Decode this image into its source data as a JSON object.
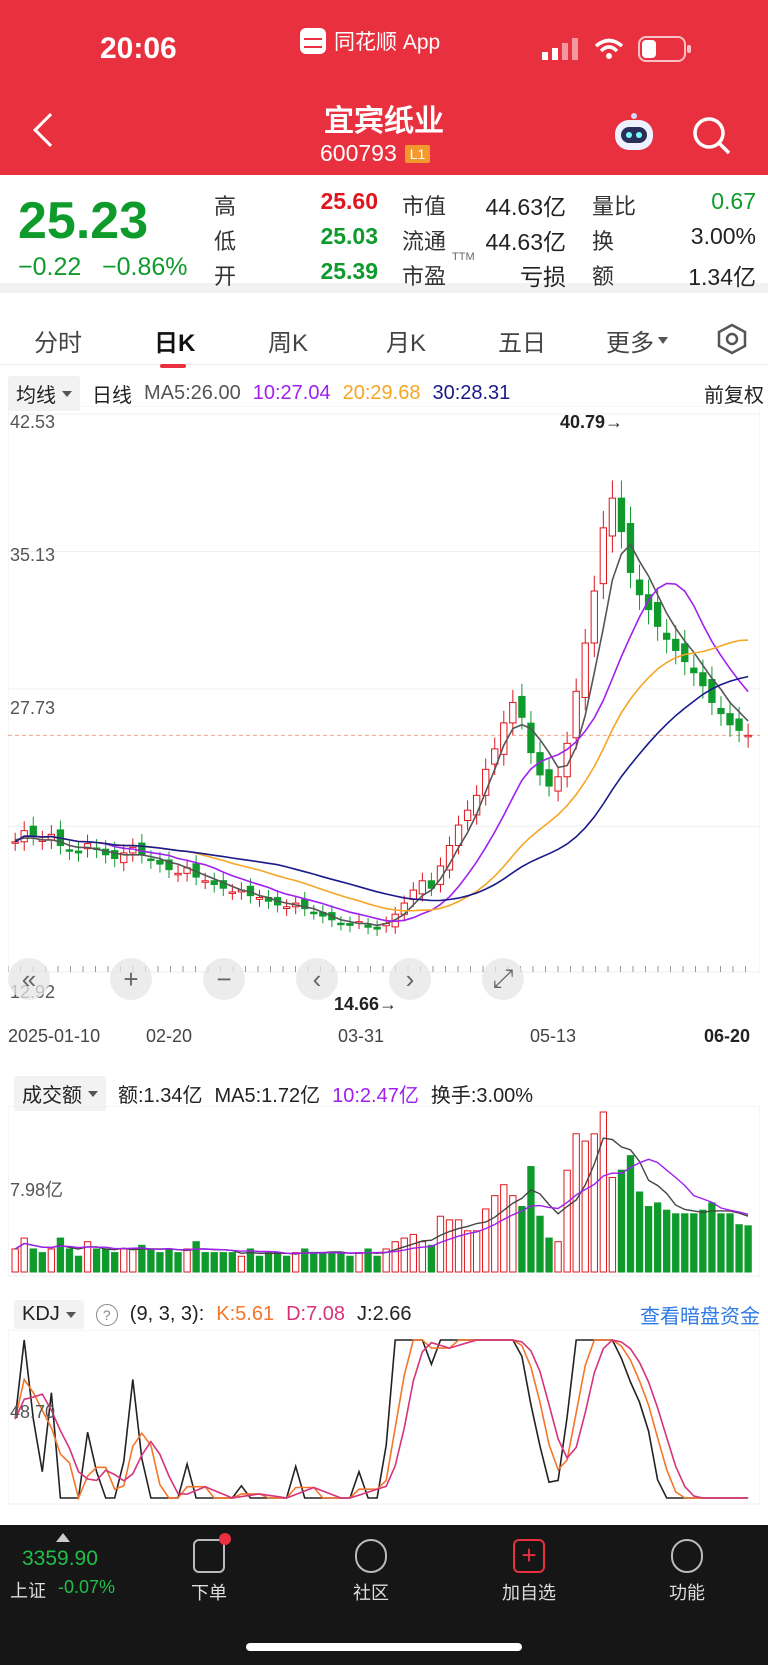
{
  "status_bar": {
    "time": "20:06",
    "app": "同花顺 App"
  },
  "header": {
    "name": "宜宾纸业",
    "code": "600793",
    "level": "L1"
  },
  "quote": {
    "price": "25.23",
    "change": "−0.22",
    "change_pct": "−0.86%",
    "high_label": "高",
    "high": "25.60",
    "low_label": "低",
    "low": "25.03",
    "open_label": "开",
    "open": "25.39",
    "mktcap_label": "市值",
    "mktcap": "44.63亿",
    "float_label": "流通",
    "float": "44.63亿",
    "pe_label": "市盈",
    "pe_sup": "TTM",
    "pe": "亏损",
    "vol_ratio_label": "量比",
    "vol_ratio": "0.67",
    "turnover_label": "换",
    "turnover": "3.00%",
    "amount_label": "额",
    "amount": "1.34亿"
  },
  "tabs": [
    "分时",
    "日K",
    "周K",
    "月K",
    "五日",
    "更多"
  ],
  "active_tab": 1,
  "kline_header": {
    "indicator": "均线",
    "period": "日线",
    "ma5": "MA5:26.00",
    "ma10": "10:27.04",
    "ma20": "20:29.68",
    "ma30": "30:28.31",
    "adjust": "前复权"
  },
  "colors": {
    "up": "#e0141d",
    "down": "#0f9a2c",
    "ma5": "#555555",
    "ma10": "#a020f0",
    "ma20": "#f5a623",
    "ma30": "#1a1a8c",
    "header": "#e8303f"
  },
  "price_axis": {
    "top": "42.53",
    "mid1": "35.13",
    "mid2": "27.73",
    "bottom": "12.92",
    "high_mark": "40.79→",
    "low_mark": "14.66→"
  },
  "date_axis": [
    "2025-01-10",
    "02-20",
    "03-31",
    "05-13",
    "06-20"
  ],
  "volume_header": {
    "indicator": "成交额",
    "amount": "额:1.34亿",
    "ma5": "MA5:1.72亿",
    "ma10": "10:2.47亿",
    "turnover": "换手:3.00%",
    "axis": "7.98亿"
  },
  "kdj_header": {
    "indicator": "KDJ",
    "params": "(9, 3, 3):",
    "k": "K:5.61",
    "d": "D:7.08",
    "j": "J:2.66",
    "link": "查看暗盘资金",
    "axis": "48.70"
  },
  "chart_data": {
    "type": "candlestick",
    "ylim": [
      12.92,
      42.53
    ],
    "high": 40.79,
    "low": 14.66,
    "close_series": [
      19.5,
      20.1,
      19.8,
      19.6,
      19.9,
      19.3,
      19.0,
      18.9,
      19.4,
      19.1,
      18.8,
      18.6,
      18.9,
      19.2,
      18.8,
      18.5,
      18.3,
      18.0,
      17.8,
      18.1,
      17.6,
      17.4,
      17.2,
      17.0,
      16.8,
      16.9,
      16.6,
      16.5,
      16.3,
      16.1,
      16.0,
      16.2,
      15.9,
      15.7,
      15.5,
      15.3,
      15.1,
      15.0,
      15.2,
      14.9,
      14.8,
      15.1,
      15.6,
      16.2,
      16.9,
      17.4,
      17.0,
      18.2,
      19.3,
      20.4,
      21.2,
      22.0,
      23.4,
      24.5,
      25.9,
      27.0,
      26.2,
      24.3,
      23.1,
      22.5,
      23.0,
      24.8,
      27.6,
      30.2,
      33.0,
      36.4,
      38.0,
      36.2,
      34.0,
      32.8,
      32.0,
      31.1,
      30.4,
      29.8,
      29.2,
      28.6,
      27.9,
      27.0,
      26.4,
      25.8,
      25.5,
      25.23
    ],
    "ma5": [
      19.6,
      19.7,
      19.7,
      19.6,
      19.6,
      19.5,
      19.3,
      19.2,
      19.2,
      19.1,
      19.0,
      18.9,
      18.8,
      18.8,
      18.8,
      18.7,
      18.6,
      18.4,
      18.3,
      18.1,
      17.9,
      17.7,
      17.5,
      17.3,
      17.1,
      16.9,
      16.8,
      16.6,
      16.5,
      16.3,
      16.2,
      16.1,
      16.0,
      15.9,
      15.7,
      15.5,
      15.3,
      15.2,
      15.1,
      15.1,
      15.0,
      15.1,
      15.3,
      15.6,
      16.1,
      16.6,
      16.9,
      17.5,
      18.3,
      19.2,
      20.0,
      21.0,
      22.2,
      23.4,
      24.7,
      25.6,
      25.8,
      25.6,
      25.0,
      24.3,
      23.5,
      23.6,
      24.6,
      26.3,
      28.6,
      31.0,
      33.6,
      35.0,
      35.5,
      34.6,
      33.8,
      32.8,
      31.8,
      31.0,
      30.3,
      29.7,
      29.0,
      28.3,
      27.7,
      27.0,
      26.5,
      26.0
    ]
  },
  "volume_data": {
    "max_label": "7.98亿",
    "bars_hint": "daily amount bars"
  },
  "kdj_data": {
    "k": 5.61,
    "d": 7.08,
    "j": 2.66
  },
  "bottom_bar": {
    "index_value": "3359.90",
    "index_name": "上证",
    "index_change": "-0.07%",
    "items": [
      "下单",
      "社区",
      "加自选",
      "功能"
    ]
  }
}
